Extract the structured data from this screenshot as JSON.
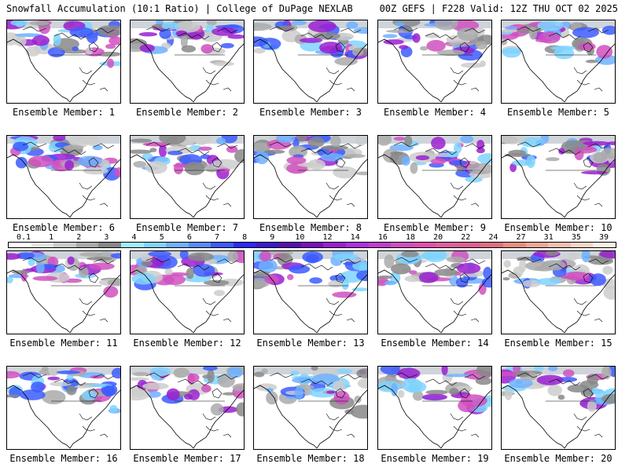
{
  "header": {
    "left": "Snowfall Accumulation (10:1 Ratio) | College of DuPage NEXLAB",
    "right": "00Z GEFS | F228 Valid: 12Z THU OCT 02 2025"
  },
  "panels": [
    "Ensemble Member: 1",
    "Ensemble Member: 2",
    "Ensemble Member: 3",
    "Ensemble Member: 4",
    "Ensemble Member: 5",
    "Ensemble Member: 6",
    "Ensemble Member: 7",
    "Ensemble Member: 8",
    "Ensemble Member: 9",
    "Ensemble Member: 10",
    "Ensemble Member: 11",
    "Ensemble Member: 12",
    "Ensemble Member: 13",
    "Ensemble Member: 14",
    "Ensemble Member: 15",
    "Ensemble Member: 16",
    "Ensemble Member: 17",
    "Ensemble Member: 18",
    "Ensemble Member: 19",
    "Ensemble Member: 20"
  ],
  "colorbar": {
    "labels": [
      "0.1",
      "1",
      "2",
      "3",
      "4",
      "5",
      "6",
      "7",
      "8",
      "9",
      "10",
      "12",
      "14",
      "16",
      "18",
      "20",
      "22",
      "24",
      "27",
      "31",
      "35",
      "39"
    ],
    "colors": [
      "#ffffff",
      "#e6e6e6",
      "#cccccc",
      "#aaaaaa",
      "#888888",
      "#a0f0ff",
      "#7fd4ff",
      "#6fb0ff",
      "#5a8cff",
      "#3c5cff",
      "#2a2aff",
      "#3a1ccc",
      "#5a10b0",
      "#7a10c0",
      "#9a20d0",
      "#b030e0",
      "#c040d0",
      "#d050c0",
      "#e050b0",
      "#e060a0",
      "#e06090",
      "#e07080",
      "#e89080",
      "#f0a898",
      "#f4c0b0",
      "#f8d8c8",
      "#fff0e6"
    ]
  }
}
